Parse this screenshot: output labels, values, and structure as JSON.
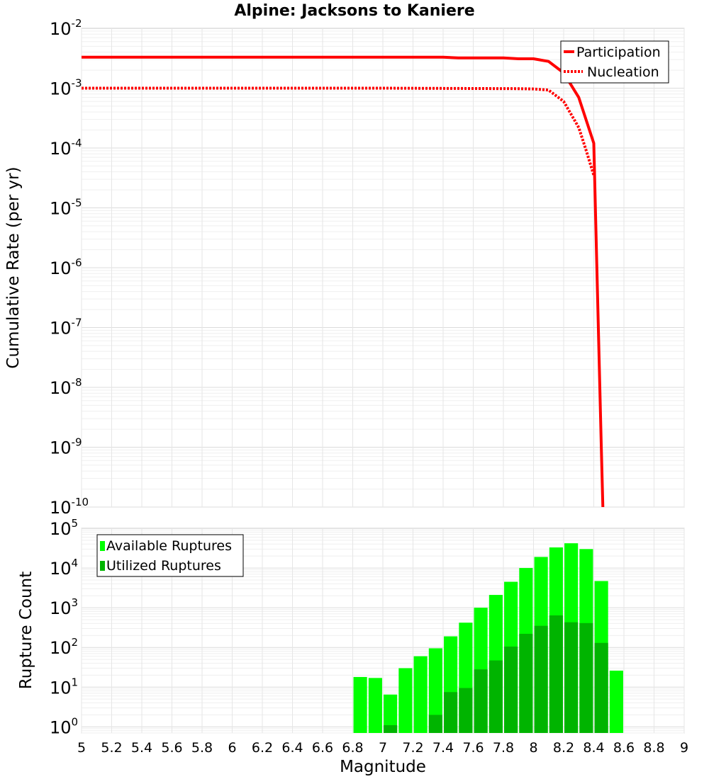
{
  "chart_data": [
    {
      "type": "line",
      "title": "Alpine: Jacksons to Kaniere",
      "xlabel": "",
      "ylabel": "Cumulative Rate (per yr)",
      "xlim": [
        5,
        9
      ],
      "ylim": [
        1e-10,
        0.01
      ],
      "yscale": "log",
      "y_ticks": [
        {
          "base": "10",
          "exp": "-10"
        },
        {
          "base": "10",
          "exp": "-9"
        },
        {
          "base": "10",
          "exp": "-8"
        },
        {
          "base": "10",
          "exp": "-7"
        },
        {
          "base": "10",
          "exp": "-6"
        },
        {
          "base": "10",
          "exp": "-5"
        },
        {
          "base": "10",
          "exp": "-4"
        },
        {
          "base": "10",
          "exp": "-3"
        },
        {
          "base": "10",
          "exp": "-2"
        }
      ],
      "legend_position": "top-right",
      "series": [
        {
          "name": "Participation",
          "style": "solid",
          "color": "#ff0000",
          "x": [
            5.0,
            6.0,
            7.0,
            7.4,
            7.5,
            7.8,
            7.9,
            8.0,
            8.1,
            8.2,
            8.3,
            8.4,
            8.45,
            8.46
          ],
          "y": [
            0.0033,
            0.0033,
            0.0033,
            0.0033,
            0.0032,
            0.0032,
            0.0031,
            0.0031,
            0.0028,
            0.0018,
            0.0007,
            0.00012,
            1e-09,
            1e-10
          ]
        },
        {
          "name": "Nucleation",
          "style": "dotted",
          "color": "#ff0000",
          "x": [
            5.0,
            6.0,
            7.0,
            7.5,
            7.9,
            8.0,
            8.1,
            8.2,
            8.3,
            8.35,
            8.4
          ],
          "y": [
            0.001,
            0.001,
            0.001,
            0.00099,
            0.00098,
            0.00097,
            0.00093,
            0.0006,
            0.00022,
            9e-05,
            3.5e-05
          ]
        }
      ]
    },
    {
      "type": "bar",
      "title": "",
      "xlabel": "Magnitude",
      "ylabel": "Rupture Count",
      "xlim": [
        5,
        9
      ],
      "ylim": [
        0.7,
        100000
      ],
      "yscale": "log",
      "y_ticks": [
        {
          "base": "10",
          "exp": "0"
        },
        {
          "base": "10",
          "exp": "1"
        },
        {
          "base": "10",
          "exp": "2"
        },
        {
          "base": "10",
          "exp": "3"
        },
        {
          "base": "10",
          "exp": "4"
        },
        {
          "base": "10",
          "exp": "5"
        }
      ],
      "x_ticks": [
        "5",
        "5.2",
        "5.4",
        "5.6",
        "5.8",
        "6",
        "6.2",
        "6.4",
        "6.6",
        "6.8",
        "7",
        "7.2",
        "7.4",
        "7.6",
        "7.8",
        "8",
        "8.2",
        "8.4",
        "8.6",
        "8.8",
        "9"
      ],
      "legend_position": "top-left",
      "categories": [
        6.85,
        6.95,
        7.05,
        7.15,
        7.25,
        7.35,
        7.45,
        7.55,
        7.65,
        7.75,
        7.85,
        7.95,
        8.05,
        8.15,
        8.25,
        8.35,
        8.45,
        8.55
      ],
      "series": [
        {
          "name": "Available Ruptures",
          "color": "#00ff00",
          "values": [
            18,
            17,
            6.5,
            30,
            60,
            95,
            190,
            420,
            1000,
            2100,
            4500,
            10000,
            19000,
            33000,
            42000,
            30000,
            4700,
            26
          ]
        },
        {
          "name": "Utilized Ruptures",
          "color": "#00b400",
          "values": [
            0,
            0,
            1.1,
            0,
            0,
            2,
            7.5,
            9.5,
            28,
            47,
            105,
            220,
            350,
            640,
            430,
            410,
            130,
            0
          ]
        }
      ]
    }
  ]
}
